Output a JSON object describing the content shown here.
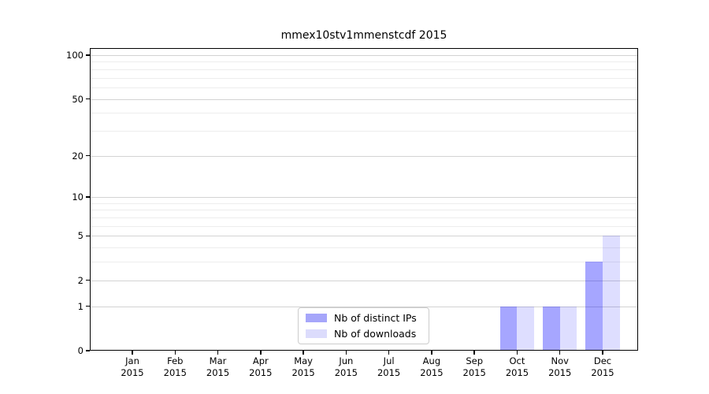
{
  "chart_data": {
    "type": "bar",
    "title": "mmex10stv1mmenstcdf 2015",
    "categories": [
      "Jan",
      "Feb",
      "Mar",
      "Apr",
      "May",
      "Jun",
      "Jul",
      "Aug",
      "Sep",
      "Oct",
      "Nov",
      "Dec"
    ],
    "category_year": "2015",
    "series": [
      {
        "name": "Nb of distinct IPs",
        "bar_color": "rgba(0,0,255,0.35)",
        "swatch_color": "#a6a6fa",
        "values": [
          0,
          0,
          0,
          0,
          0,
          0,
          0,
          0,
          0,
          1,
          1,
          3
        ]
      },
      {
        "name": "Nb of downloads",
        "bar_color": "rgba(0,0,255,0.13)",
        "swatch_color": "#dcdcfc",
        "values": [
          0,
          0,
          0,
          0,
          0,
          0,
          0,
          0,
          0,
          1,
          1,
          5
        ]
      }
    ],
    "y_axis": {
      "scale": "log1p",
      "ticks": [
        0,
        1,
        2,
        5,
        10,
        20,
        50,
        100
      ],
      "minor_gridlines": [
        3,
        4,
        6,
        7,
        8,
        9,
        30,
        40,
        60,
        70,
        80,
        90
      ],
      "range": [
        0,
        112
      ]
    },
    "xlabel": "",
    "ylabel": "",
    "grid": true,
    "legend_position": "inside lower center"
  },
  "colors": {
    "background": "#ffffff",
    "axis": "#000000",
    "major_grid": "#d3d3d3",
    "minor_grid": "#ededed",
    "legend_border": "#cccccc"
  }
}
